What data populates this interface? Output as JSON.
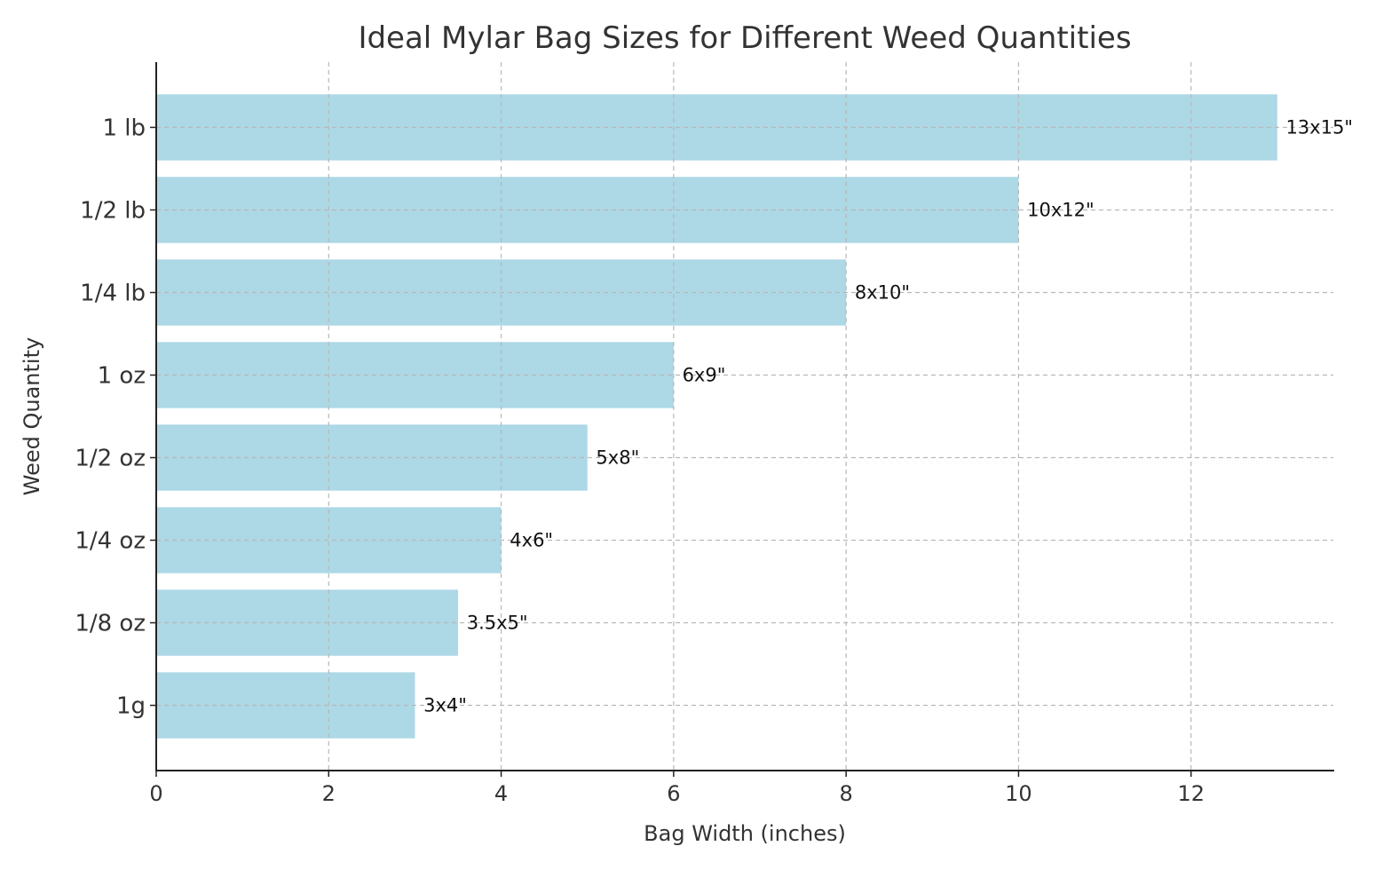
{
  "chart_data": {
    "type": "bar",
    "orientation": "horizontal",
    "title": "Ideal Mylar Bag Sizes for Different Weed Quantities",
    "xlabel": "Bag Width (inches)",
    "ylabel": "Weed Quantity",
    "categories": [
      "1g",
      "1/8 oz",
      "1/4 oz",
      "1/2 oz",
      "1 oz",
      "1/4 lb",
      "1/2 lb",
      "1 lb"
    ],
    "values": [
      3,
      3.5,
      4,
      5,
      6,
      8,
      10,
      13
    ],
    "data_labels": [
      "3x4\"",
      "3.5x5\"",
      "4x6\"",
      "5x8\"",
      "6x9\"",
      "8x10\"",
      "10x12\"",
      "13x15\""
    ],
    "xlim": [
      0,
      13.65
    ],
    "xticks": [
      0,
      2,
      4,
      6,
      8,
      10,
      12
    ],
    "grid": true,
    "bar_color": "#ADD8E6"
  }
}
